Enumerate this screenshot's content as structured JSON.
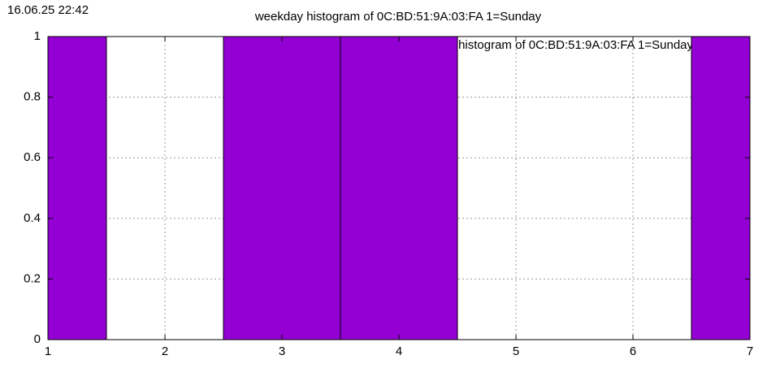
{
  "chart_data": {
    "type": "bar",
    "title": "weekday histogram of 0C:BD:51:9A:03:FA 1=Sunday",
    "annotation": "16.06.25 22:42",
    "x": [
      1,
      2,
      3,
      4,
      5,
      6,
      7
    ],
    "series": [
      {
        "name": "weekday histogram of 0C:BD:51:9A:03:FA 1=Sunday",
        "color": "#9400d3",
        "values": [
          1,
          0,
          1,
          1,
          0,
          0,
          1
        ]
      }
    ],
    "xlim": [
      1,
      7
    ],
    "ylim": [
      0,
      1
    ],
    "xticks": [
      1,
      2,
      3,
      4,
      5,
      6,
      7
    ],
    "yticks": [
      0,
      0.2,
      0.4,
      0.6,
      0.8,
      1
    ],
    "grid": true
  }
}
